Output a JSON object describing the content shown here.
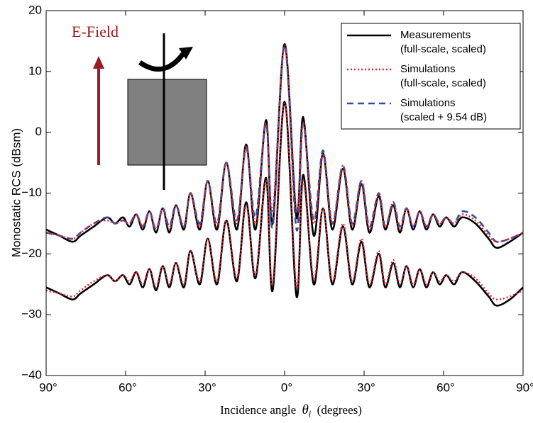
{
  "chart_data": {
    "type": "line",
    "y_label": "Monostatic RCS (dBsm)",
    "x_label": {
      "text": "Incidence angle",
      "symbol": "θ",
      "subscript": "i",
      "unit": "(degrees)"
    },
    "annotation": "E-Field",
    "xlim": [
      -90,
      90
    ],
    "ylim": [
      -40,
      20
    ],
    "xticks": [
      {
        "value": -90,
        "label": "90°"
      },
      {
        "value": -60,
        "label": "60°"
      },
      {
        "value": -30,
        "label": "30°"
      },
      {
        "value": 0,
        "label": "0°"
      },
      {
        "value": 30,
        "label": "30°"
      },
      {
        "value": 60,
        "label": "60°"
      },
      {
        "value": 90,
        "label": "90°"
      }
    ],
    "yticks": [
      {
        "value": -40,
        "label": "−40"
      },
      {
        "value": -30,
        "label": "−30"
      },
      {
        "value": -20,
        "label": "−20"
      },
      {
        "value": -10,
        "label": "−10"
      },
      0,
      10,
      20
    ],
    "legend": "upper right",
    "x": [
      -90,
      -85,
      -80,
      -77,
      -72,
      -67,
      -64,
      -61,
      -58.5,
      -56,
      -53.5,
      -51,
      -48.5,
      -46,
      -43.5,
      -41,
      -38,
      -35.5,
      -32,
      -29,
      -25.5,
      -22,
      -18,
      -14.5,
      -11,
      -7,
      -4.5,
      0,
      4.5,
      7,
      11,
      14.5,
      18,
      22,
      25.5,
      29,
      32,
      35.5,
      38,
      41,
      43.5,
      46,
      48.5,
      51,
      53.5,
      56,
      58.5,
      61,
      64,
      67,
      72,
      77,
      80,
      85,
      90
    ],
    "series": [
      {
        "name": [
          "Measurements",
          "(full-scale, scaled)"
        ],
        "color": "#000000",
        "dash": "solid",
        "curves": [
          [
            -16,
            -17,
            -18,
            -17,
            -15.5,
            -14,
            -15,
            -14,
            -15.5,
            -13.5,
            -16,
            -13,
            -16.5,
            -12.5,
            -16.5,
            -12,
            -16,
            -10,
            -16,
            -8,
            -16,
            -5,
            -16,
            -2,
            -16,
            2,
            -15,
            14.5,
            -14,
            2.5,
            -17,
            -3.5,
            -16,
            -6,
            -16,
            -8.5,
            -16.5,
            -10.5,
            -16,
            -12,
            -16.5,
            -12.5,
            -16,
            -13,
            -16,
            -13.5,
            -15.5,
            -14,
            -15.5,
            -14,
            -15,
            -17.5,
            -19,
            -18,
            -16.5
          ],
          [
            -25.5,
            -26.5,
            -27.5,
            -26.5,
            -25,
            -23.5,
            -24.5,
            -23.5,
            -25,
            -23,
            -25.5,
            -22.5,
            -26,
            -22,
            -25.5,
            -21.5,
            -25.5,
            -19.5,
            -25,
            -17.5,
            -25,
            -14.5,
            -24.5,
            -11.5,
            -24,
            -7.5,
            -26,
            5,
            -27,
            -7,
            -25,
            -12.5,
            -25,
            -15.5,
            -25,
            -18,
            -25.5,
            -20,
            -25.5,
            -21.5,
            -25.5,
            -22,
            -25.5,
            -22.5,
            -25.5,
            -23,
            -25,
            -23.5,
            -25,
            -23,
            -24.5,
            -27,
            -28.5,
            -27.5,
            -25.5
          ]
        ]
      },
      {
        "name": [
          "Simulations",
          "(full-scale, scaled)"
        ],
        "color": "#e8202a",
        "dash": "dotted",
        "curves": [
          [
            -16.5,
            -17,
            -17.5,
            -16.5,
            -15,
            -14.5,
            -15,
            -14.5,
            -15,
            -13.5,
            -15.5,
            -13,
            -16,
            -12.5,
            -16,
            -12,
            -15.5,
            -10,
            -15.5,
            -8,
            -15.5,
            -5,
            -15,
            -2.5,
            -15,
            1.5,
            -13,
            14.3,
            -13,
            1.5,
            -15,
            -3.5,
            -15,
            -5.5,
            -15.5,
            -8,
            -16,
            -10,
            -15.5,
            -11.5,
            -16,
            -12.5,
            -15.5,
            -13,
            -15.5,
            -13.5,
            -15,
            -14,
            -15,
            -13.5,
            -14.5,
            -17,
            -18,
            -17.5,
            -16.5
          ],
          [
            -26,
            -26.5,
            -27,
            -26,
            -24.5,
            -23.5,
            -24.5,
            -23.5,
            -24.5,
            -23,
            -25,
            -22.5,
            -25.5,
            -22,
            -25,
            -21.5,
            -25,
            -19.5,
            -24.5,
            -17.5,
            -24.5,
            -14.5,
            -24,
            -12,
            -23.5,
            -8,
            -25,
            4.8,
            -25.5,
            -8,
            -24,
            -12.5,
            -24.5,
            -15,
            -24.5,
            -17.5,
            -25,
            -19.5,
            -25,
            -21,
            -25,
            -22,
            -25,
            -22.5,
            -25,
            -23,
            -24.5,
            -23.5,
            -24.5,
            -23,
            -24,
            -26.5,
            -27.5,
            -27,
            -26
          ]
        ]
      },
      {
        "name": [
          "Simulations",
          "(scaled + 9.54 dB)"
        ],
        "color": "#2b4fa8",
        "dash": "dashed",
        "curves": [
          [
            -16.5,
            -17,
            -17.5,
            -16.5,
            -15,
            -14,
            -15,
            -14.5,
            -15,
            -13.5,
            -15.5,
            -13,
            -16,
            -12.5,
            -15.5,
            -12,
            -15.5,
            -10,
            -15,
            -8,
            -15,
            -5,
            -14.5,
            -2.5,
            -14,
            1.5,
            -15.5,
            14.3,
            -16,
            1.5,
            -14.5,
            -3,
            -15,
            -5.5,
            -15,
            -8,
            -15.5,
            -10,
            -15.5,
            -11.5,
            -15.5,
            -12.5,
            -15.5,
            -13,
            -15.5,
            -13.5,
            -15,
            -14,
            -15,
            -13,
            -14,
            -16.5,
            -18,
            -17.5,
            -16.5
          ]
        ]
      }
    ]
  }
}
